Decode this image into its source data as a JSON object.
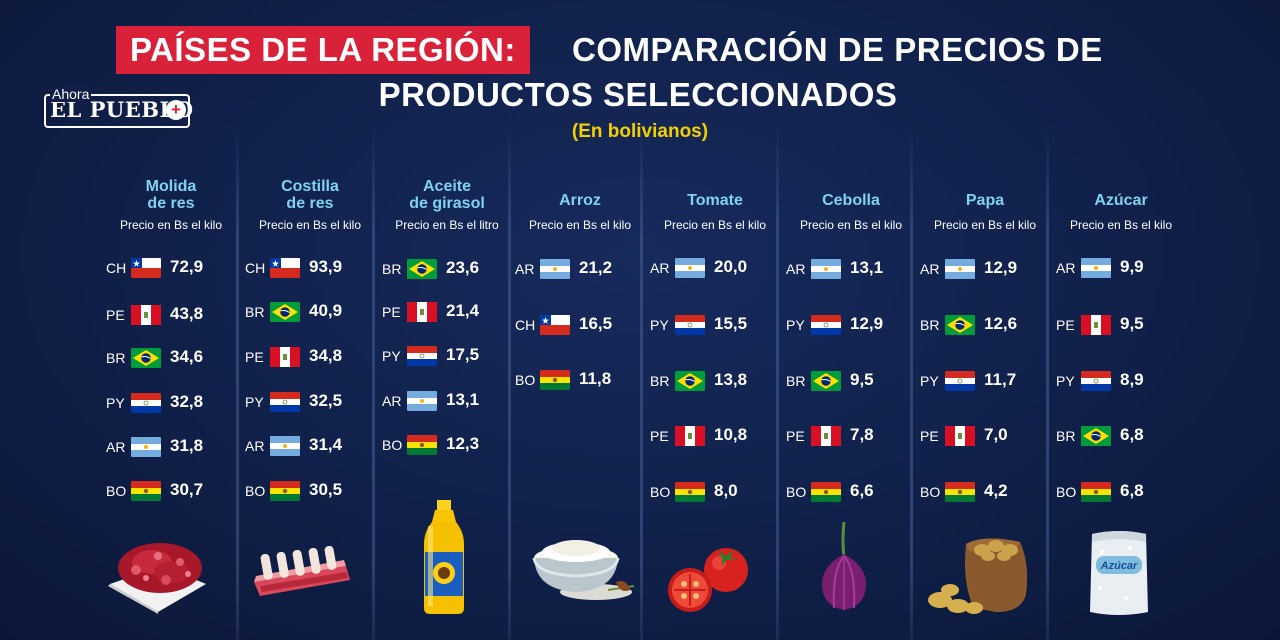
{
  "header": {
    "title_red": "PAÍSES DE LA REGIÓN:",
    "title_rest_line1": "COMPARACIÓN DE PRECIOS DE",
    "title_line2": "PRODUCTOS SELECCIONADOS",
    "subtitle": "(En bolivianos)"
  },
  "logo": {
    "top": "Ahora",
    "name": "EL PUEBLO"
  },
  "colors": {
    "accent_red": "#d9223a",
    "subtitle_yellow": "#f5d000",
    "product_cyan": "#7fd3f0",
    "background": "#0f1f47"
  },
  "products": [
    {
      "name_l1": "Molida",
      "name_l2": "de res",
      "unit": "Precio en Bs el kilo",
      "icon": "ground-beef",
      "rows": [
        {
          "code": "CH",
          "flag": "chile",
          "price": "72,9"
        },
        {
          "code": "PE",
          "flag": "peru",
          "price": "43,8"
        },
        {
          "code": "BR",
          "flag": "brazil",
          "price": "34,6"
        },
        {
          "code": "PY",
          "flag": "paraguay",
          "price": "32,8"
        },
        {
          "code": "AR",
          "flag": "argentina",
          "price": "31,8"
        },
        {
          "code": "BO",
          "flag": "bolivia",
          "price": "30,7"
        }
      ]
    },
    {
      "name_l1": "Costilla",
      "name_l2": "de res",
      "unit": "Precio en Bs el kilo",
      "icon": "beef-ribs",
      "rows": [
        {
          "code": "CH",
          "flag": "chile",
          "price": "93,9"
        },
        {
          "code": "BR",
          "flag": "brazil",
          "price": "40,9"
        },
        {
          "code": "PE",
          "flag": "peru",
          "price": "34,8"
        },
        {
          "code": "PY",
          "flag": "paraguay",
          "price": "32,5"
        },
        {
          "code": "AR",
          "flag": "argentina",
          "price": "31,4"
        },
        {
          "code": "BO",
          "flag": "bolivia",
          "price": "30,5"
        }
      ]
    },
    {
      "name_l1": "Aceite",
      "name_l2": "de girasol",
      "unit": "Precio en Bs el litro",
      "icon": "oil-bottle",
      "rows": [
        {
          "code": "BR",
          "flag": "brazil",
          "price": "23,6"
        },
        {
          "code": "PE",
          "flag": "peru",
          "price": "21,4"
        },
        {
          "code": "PY",
          "flag": "paraguay",
          "price": "17,5"
        },
        {
          "code": "AR",
          "flag": "argentina",
          "price": "13,1"
        },
        {
          "code": "BO",
          "flag": "bolivia",
          "price": "12,3"
        }
      ]
    },
    {
      "name_l1": "Arroz",
      "name_l2": "",
      "unit": "Precio en Bs el kilo",
      "icon": "rice-bowl",
      "rows": [
        {
          "code": "AR",
          "flag": "argentina",
          "price": "21,2"
        },
        {
          "code": "CH",
          "flag": "chile",
          "price": "16,5"
        },
        {
          "code": "BO",
          "flag": "bolivia",
          "price": "11,8"
        }
      ]
    },
    {
      "name_l1": "Tomate",
      "name_l2": "",
      "unit": "Precio en Bs el kilo",
      "icon": "tomato",
      "rows": [
        {
          "code": "AR",
          "flag": "argentina",
          "price": "20,0"
        },
        {
          "code": "PY",
          "flag": "paraguay",
          "price": "15,5"
        },
        {
          "code": "BR",
          "flag": "brazil",
          "price": "13,8"
        },
        {
          "code": "PE",
          "flag": "peru",
          "price": "10,8"
        },
        {
          "code": "BO",
          "flag": "bolivia",
          "price": "8,0"
        }
      ]
    },
    {
      "name_l1": "Cebolla",
      "name_l2": "",
      "unit": "Precio en Bs el kilo",
      "icon": "onion",
      "rows": [
        {
          "code": "AR",
          "flag": "argentina",
          "price": "13,1"
        },
        {
          "code": "PY",
          "flag": "paraguay",
          "price": "12,9"
        },
        {
          "code": "BR",
          "flag": "brazil",
          "price": "9,5"
        },
        {
          "code": "PE",
          "flag": "peru",
          "price": "7,8"
        },
        {
          "code": "BO",
          "flag": "bolivia",
          "price": "6,6"
        }
      ]
    },
    {
      "name_l1": "Papa",
      "name_l2": "",
      "unit": "Precio en Bs el kilo",
      "icon": "potato-sack",
      "rows": [
        {
          "code": "AR",
          "flag": "argentina",
          "price": "12,9"
        },
        {
          "code": "BR",
          "flag": "brazil",
          "price": "12,6"
        },
        {
          "code": "PY",
          "flag": "paraguay",
          "price": "11,7"
        },
        {
          "code": "PE",
          "flag": "peru",
          "price": "7,0"
        },
        {
          "code": "BO",
          "flag": "bolivia",
          "price": "4,2"
        }
      ]
    },
    {
      "name_l1": "Azúcar",
      "name_l2": "",
      "unit": "Precio en Bs el kilo",
      "icon": "sugar-bag",
      "bag_label": "Azúcar",
      "rows": [
        {
          "code": "AR",
          "flag": "argentina",
          "price": "9,9"
        },
        {
          "code": "PE",
          "flag": "peru",
          "price": "9,5"
        },
        {
          "code": "PY",
          "flag": "paraguay",
          "price": "8,9"
        },
        {
          "code": "BR",
          "flag": "brazil",
          "price": "6,8"
        },
        {
          "code": "BO",
          "flag": "bolivia",
          "price": "6,8"
        }
      ]
    }
  ]
}
